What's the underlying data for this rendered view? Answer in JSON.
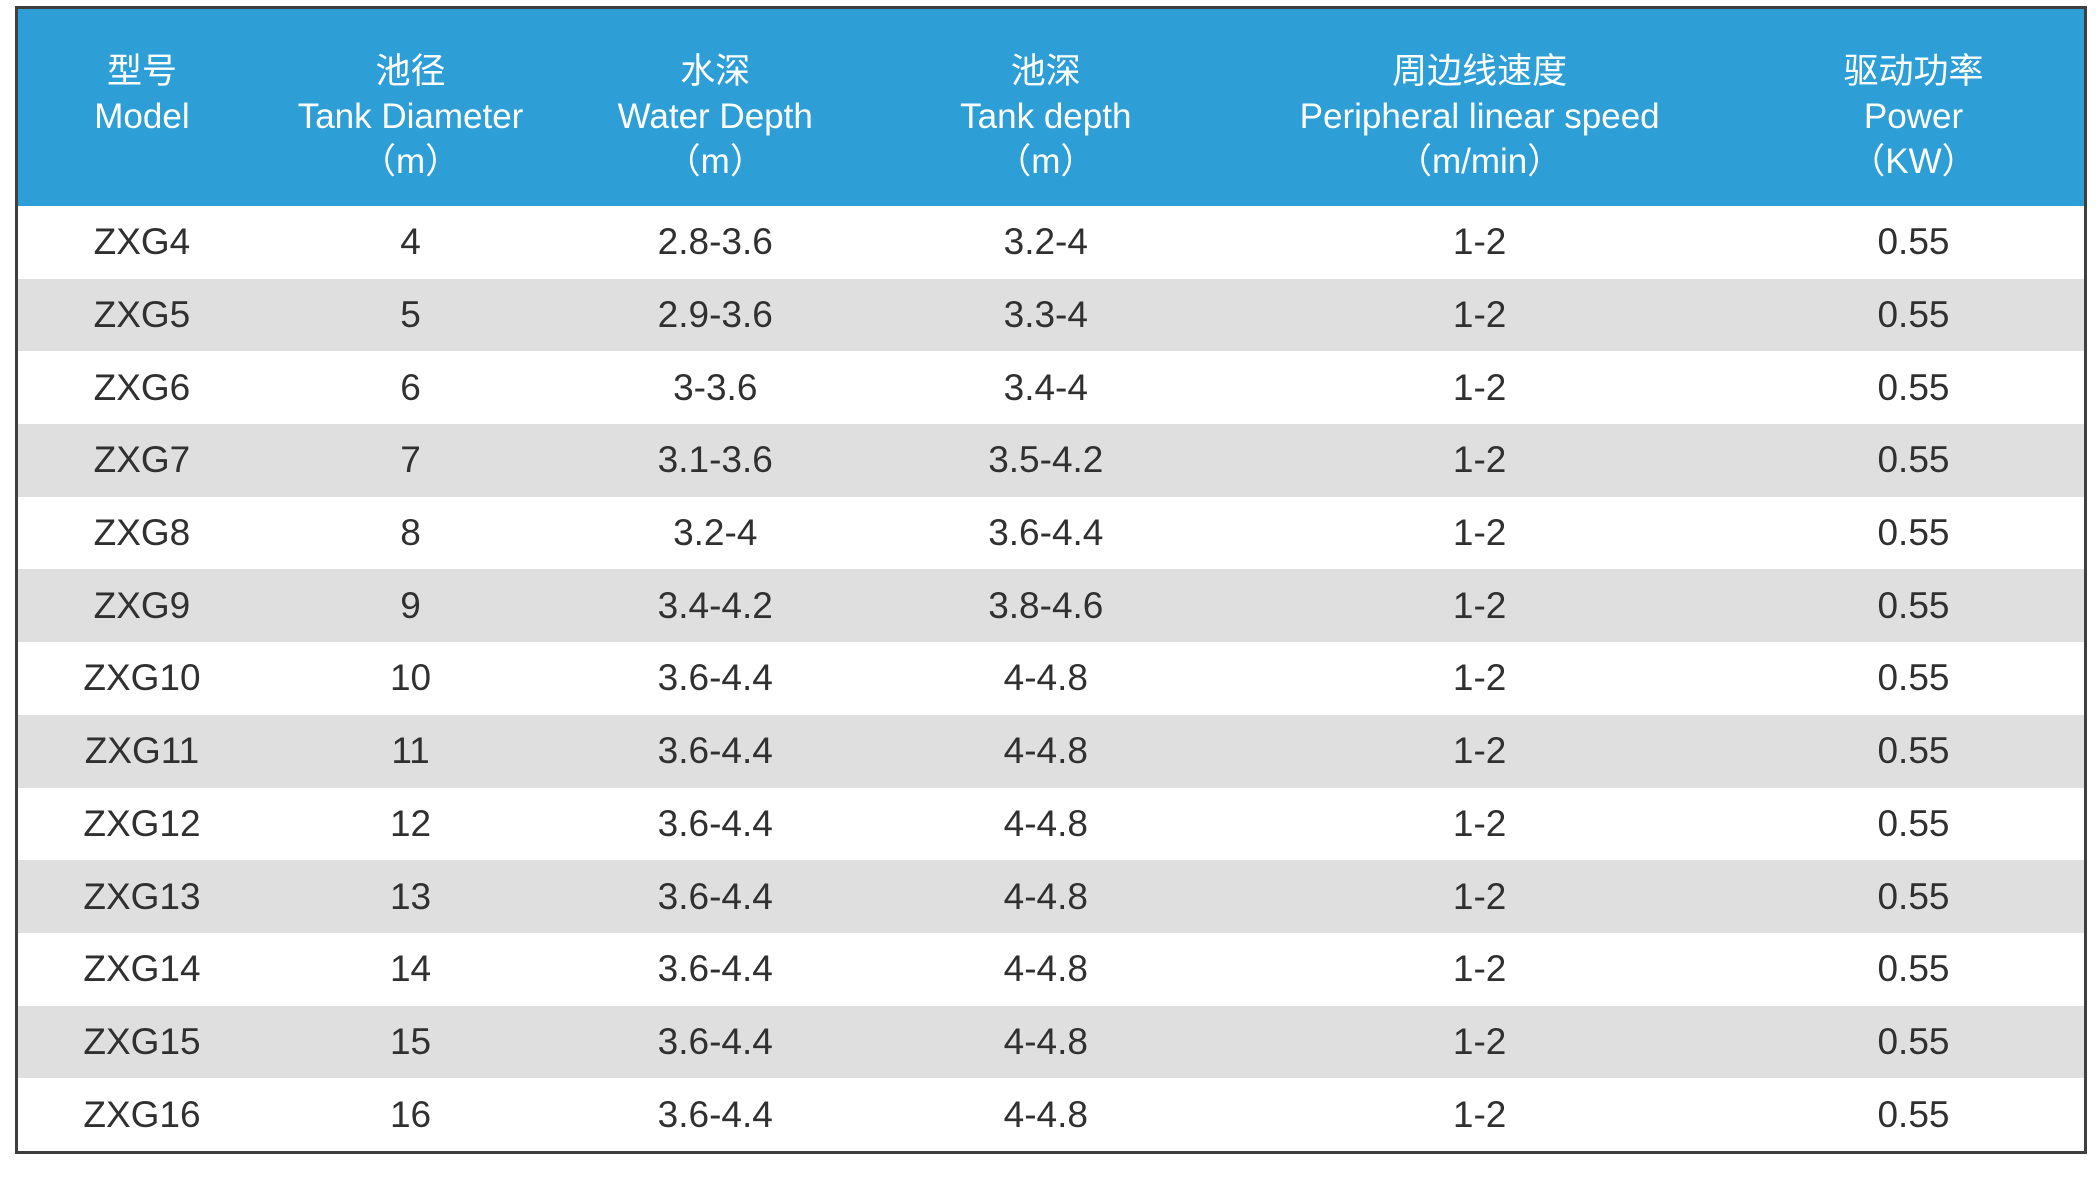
{
  "table": {
    "colors": {
      "header_bg": "#2e9fd6",
      "header_text": "#ffffff",
      "row_bg": "#ffffff",
      "row_alt_bg": "#dfdfdf",
      "cell_text": "#303030",
      "border": "#3f3f3f"
    },
    "columns": [
      {
        "zh": "型号",
        "en": "Model",
        "unit": ""
      },
      {
        "zh": "池径",
        "en": "Tank Diameter",
        "unit": "（m）"
      },
      {
        "zh": "水深",
        "en": "Water Depth",
        "unit": "（m）"
      },
      {
        "zh": "池深",
        "en": "Tank depth",
        "unit": "（m）"
      },
      {
        "zh": "周边线速度",
        "en": "Peripheral linear speed",
        "unit": "（m/min）"
      },
      {
        "zh": "驱动功率",
        "en": "Power",
        "unit": "（KW）"
      }
    ],
    "rows": [
      [
        "ZXG4",
        "4",
        "2.8-3.6",
        "3.2-4",
        "1-2",
        "0.55"
      ],
      [
        "ZXG5",
        "5",
        "2.9-3.6",
        "3.3-4",
        "1-2",
        "0.55"
      ],
      [
        "ZXG6",
        "6",
        "3-3.6",
        "3.4-4",
        "1-2",
        "0.55"
      ],
      [
        "ZXG7",
        "7",
        "3.1-3.6",
        "3.5-4.2",
        "1-2",
        "0.55"
      ],
      [
        "ZXG8",
        "8",
        "3.2-4",
        "3.6-4.4",
        "1-2",
        "0.55"
      ],
      [
        "ZXG9",
        "9",
        "3.4-4.2",
        "3.8-4.6",
        "1-2",
        "0.55"
      ],
      [
        "ZXG10",
        "10",
        "3.6-4.4",
        "4-4.8",
        "1-2",
        "0.55"
      ],
      [
        "ZXG11",
        "11",
        "3.6-4.4",
        "4-4.8",
        "1-2",
        "0.55"
      ],
      [
        "ZXG12",
        "12",
        "3.6-4.4",
        "4-4.8",
        "1-2",
        "0.55"
      ],
      [
        "ZXG13",
        "13",
        "3.6-4.4",
        "4-4.8",
        "1-2",
        "0.55"
      ],
      [
        "ZXG14",
        "14",
        "3.6-4.4",
        "4-4.8",
        "1-2",
        "0.55"
      ],
      [
        "ZXG15",
        "15",
        "3.6-4.4",
        "4-4.8",
        "1-2",
        "0.55"
      ],
      [
        "ZXG16",
        "16",
        "3.6-4.4",
        "4-4.8",
        "1-2",
        "0.55"
      ]
    ],
    "cell_names": [
      "cell-model",
      "cell-tank-diameter",
      "cell-water-depth",
      "cell-tank-depth",
      "cell-peripheral-linear-speed",
      "cell-power"
    ]
  }
}
